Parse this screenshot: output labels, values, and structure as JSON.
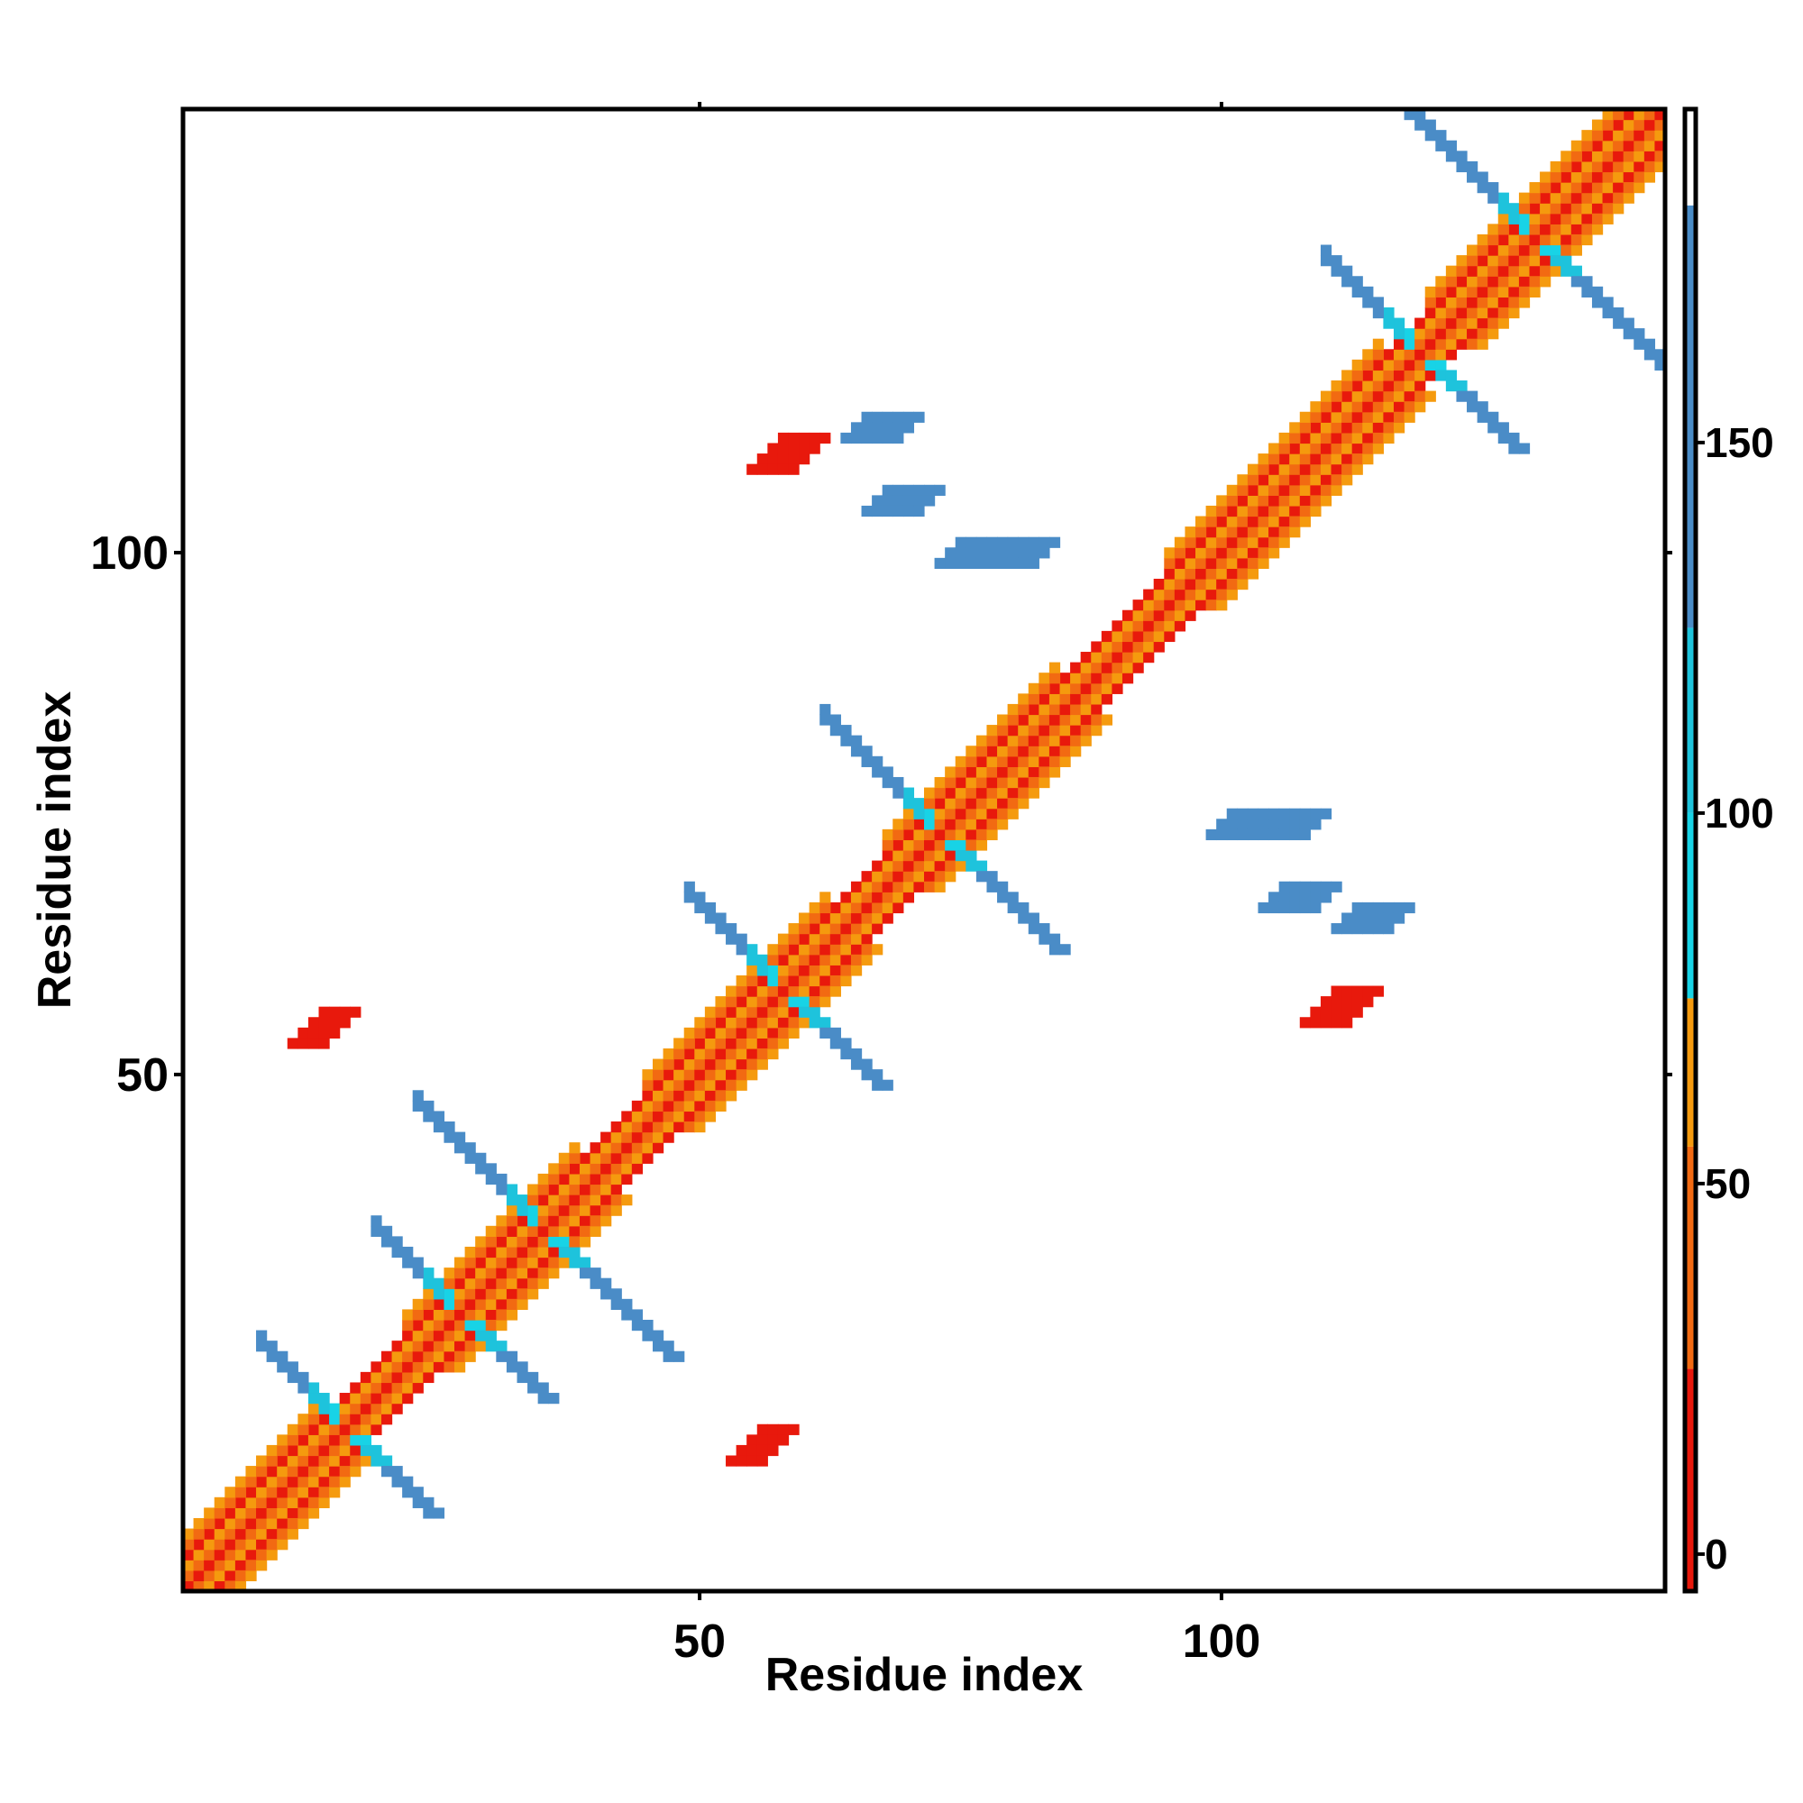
{
  "chart_data": {
    "type": "heatmap",
    "title": "",
    "xlabel": "Residue index",
    "ylabel": "Residue index",
    "x_ticks": [
      50,
      100
    ],
    "y_ticks": [
      50,
      100
    ],
    "x_range": [
      1,
      142
    ],
    "y_range": [
      1,
      142
    ],
    "colorbar": {
      "ticks": [
        0,
        50,
        100,
        150
      ],
      "range": [
        -5,
        195
      ],
      "bands": [
        {
          "from": -5,
          "to": 25,
          "color": "#e8190c"
        },
        {
          "from": 25,
          "to": 55,
          "color": "#f26a12"
        },
        {
          "from": 55,
          "to": 75,
          "color": "#f59a0e"
        },
        {
          "from": 75,
          "to": 100,
          "color": "#18d3e6"
        },
        {
          "from": 100,
          "to": 125,
          "color": "#1ec3dc"
        },
        {
          "from": 125,
          "to": 182,
          "color": "#4a8cc7"
        },
        {
          "from": 182,
          "to": 195,
          "color": "#ffffff"
        }
      ]
    },
    "legend": "right",
    "grid": false,
    "patterns": {
      "diagonal_band": {
        "start": 1,
        "end": 142
      },
      "helix_segments": [
        [
          1,
          13
        ],
        [
          22,
          38
        ],
        [
          45,
          62
        ],
        [
          68,
          84
        ],
        [
          95,
          115
        ],
        [
          120,
          142
        ]
      ],
      "sheet_crosses": [
        {
          "i": 16,
          "j": 16,
          "length": 8
        },
        {
          "i": 27,
          "j": 27,
          "length": 8
        },
        {
          "i": 35,
          "j": 35,
          "length": 12
        },
        {
          "i": 58,
          "j": 58,
          "length": 9
        },
        {
          "i": 73,
          "j": 73,
          "length": 11
        },
        {
          "i": 119,
          "j": 119,
          "length": 9
        },
        {
          "i": 130,
          "j": 130,
          "length": 12
        }
      ],
      "off_diagonal_blocks": [
        {
          "x": 53,
          "y": 13,
          "w": 4,
          "h": 4,
          "value": 5
        },
        {
          "x": 11,
          "y": 53,
          "w": 4,
          "h": 4,
          "value": 5
        },
        {
          "x": 108,
          "y": 55,
          "w": 5,
          "h": 4,
          "value": 5
        },
        {
          "x": 55,
          "y": 108,
          "w": 5,
          "h": 4,
          "value": 5
        },
        {
          "x": 73,
          "y": 99,
          "w": 10,
          "h": 3,
          "value": 150
        },
        {
          "x": 99,
          "y": 73,
          "w": 10,
          "h": 3,
          "value": 150
        },
        {
          "x": 64,
          "y": 111,
          "w": 6,
          "h": 3,
          "value": 150
        },
        {
          "x": 111,
          "y": 64,
          "w": 6,
          "h": 3,
          "value": 150
        },
        {
          "x": 104,
          "y": 66,
          "w": 6,
          "h": 3,
          "value": 150
        },
        {
          "x": 66,
          "y": 104,
          "w": 6,
          "h": 3,
          "value": 150
        }
      ]
    }
  }
}
